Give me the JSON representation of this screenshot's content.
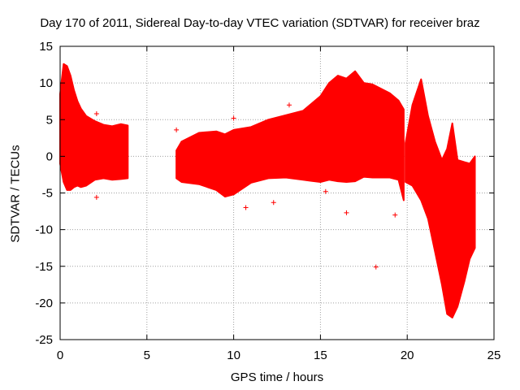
{
  "chart_data": {
    "type": "scatter",
    "title": "Day 170 of 2011, Sidereal Day-to-day VTEC variation (SDTVAR) for receiver braz",
    "xlabel": "GPS time / hours",
    "ylabel": "SDTVAR / TECUs",
    "xlim": [
      0,
      25
    ],
    "ylim": [
      -25,
      15
    ],
    "xticks": [
      0,
      5,
      10,
      15,
      20,
      25
    ],
    "yticks": [
      -25,
      -20,
      -15,
      -10,
      -5,
      0,
      5,
      10,
      15
    ],
    "grid": true,
    "marker": "+",
    "color": "#ff0000",
    "series": [
      {
        "name": "SDTVAR",
        "envelope_x": [
          0.0,
          0.2,
          0.4,
          0.6,
          0.8,
          1.0,
          1.2,
          1.5,
          2.0,
          2.5,
          3.0,
          3.5,
          3.9
        ],
        "envelope_upper": [
          8.5,
          12.6,
          12.3,
          11.0,
          9.0,
          7.5,
          6.5,
          5.5,
          4.8,
          4.3,
          4.1,
          4.4,
          4.2
        ],
        "envelope_lower": [
          -1.0,
          -3.5,
          -4.6,
          -4.6,
          -4.2,
          -4.0,
          -4.2,
          -4.0,
          -3.2,
          -3.0,
          -3.2,
          -3.1,
          -3.0
        ],
        "envelope2_x": [
          6.7,
          7.0,
          8.0,
          9.0,
          9.5,
          10.0,
          11.0,
          12.0,
          13.0,
          14.0,
          15.0,
          15.5,
          16.0,
          16.5,
          17.0,
          17.5,
          18.0,
          19.0,
          19.5,
          19.8
        ],
        "envelope2_upper": [
          0.8,
          2.0,
          3.2,
          3.4,
          3.0,
          3.6,
          4.0,
          5.0,
          5.6,
          6.2,
          8.2,
          10.0,
          11.0,
          10.6,
          11.6,
          10.0,
          9.8,
          8.6,
          7.6,
          6.4
        ],
        "envelope2_lower": [
          -3.0,
          -3.5,
          -3.8,
          -4.6,
          -5.5,
          -5.2,
          -3.6,
          -3.0,
          -2.9,
          -3.2,
          -3.5,
          -3.2,
          -3.4,
          -3.5,
          -3.4,
          -2.8,
          -2.9,
          -2.9,
          -3.2,
          -6.0
        ],
        "envelope3_x": [
          19.9,
          20.3,
          20.8,
          21.2,
          21.6,
          22.0,
          22.3,
          22.6,
          22.9,
          23.3,
          23.6,
          23.9
        ],
        "envelope3_upper": [
          1.8,
          7.0,
          10.5,
          5.5,
          2.0,
          -0.5,
          1.0,
          4.5,
          -0.5,
          -0.8,
          -1.0,
          0.0
        ],
        "envelope3_lower": [
          -3.5,
          -4.0,
          -6.0,
          -8.5,
          -13.0,
          -17.5,
          -21.5,
          -22.0,
          -20.5,
          -17.0,
          -14.0,
          -12.5
        ],
        "outliers": [
          {
            "x": 2.1,
            "y": 5.8
          },
          {
            "x": 2.1,
            "y": -5.6
          },
          {
            "x": 6.7,
            "y": 3.6
          },
          {
            "x": 10.0,
            "y": 5.2
          },
          {
            "x": 10.7,
            "y": -7.0
          },
          {
            "x": 12.3,
            "y": -6.3
          },
          {
            "x": 13.2,
            "y": 7.0
          },
          {
            "x": 15.3,
            "y": -4.8
          },
          {
            "x": 16.5,
            "y": -7.7
          },
          {
            "x": 18.2,
            "y": 2.1
          },
          {
            "x": 18.2,
            "y": -15.1
          },
          {
            "x": 19.3,
            "y": -8.0
          }
        ]
      }
    ]
  }
}
